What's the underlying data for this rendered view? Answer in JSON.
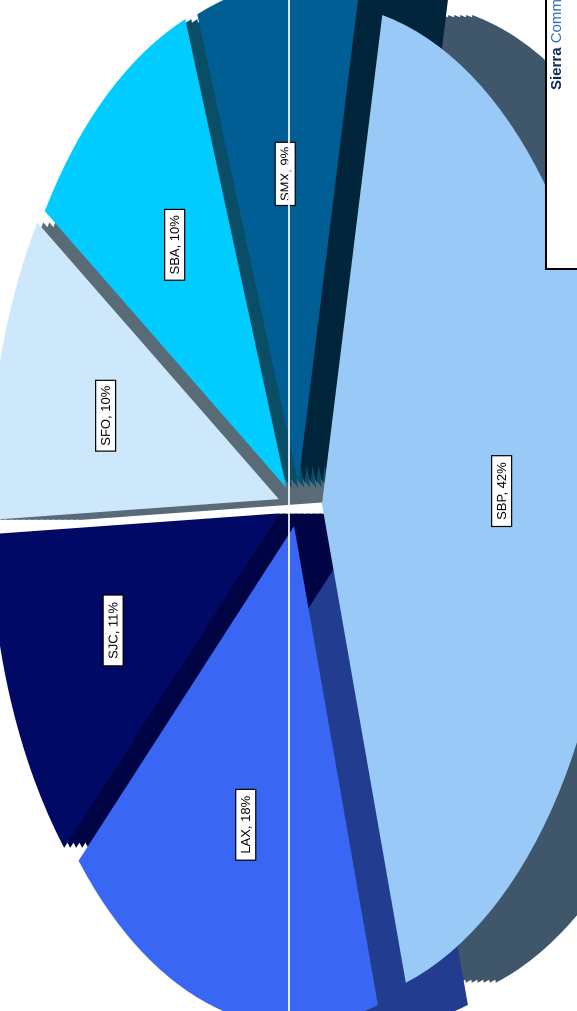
{
  "chart_data": {
    "type": "pie",
    "style": "3d-exploded",
    "orientation": "rotated-90",
    "slices": [
      {
        "label": "SBP",
        "percent": 42,
        "display": "SBP, 42%",
        "color": "#99c9f7",
        "side_color": "#3f566b"
      },
      {
        "label": "LAX",
        "percent": 18,
        "display": "LAX, 18%",
        "color": "#3a66f4",
        "side_color": "#223d8f"
      },
      {
        "label": "SJC",
        "percent": 11,
        "display": "SJC, 11%",
        "color": "#000a66",
        "side_color": "#000444"
      },
      {
        "label": "SFO",
        "percent": 10,
        "display": "SFO, 10%",
        "color": "#cde7fb",
        "side_color": "#5a6b78"
      },
      {
        "label": "SBA",
        "percent": 10,
        "display": "SBA, 10%",
        "color": "#00ccff",
        "side_color": "#0a4d66"
      },
      {
        "label": "SMX",
        "percent": 9,
        "display": "SMX, 9%",
        "color": "#005e94",
        "side_color": "#00243a"
      }
    ]
  },
  "legend": {
    "bold_text": "Sierra",
    "rest_text": "Comm..."
  }
}
